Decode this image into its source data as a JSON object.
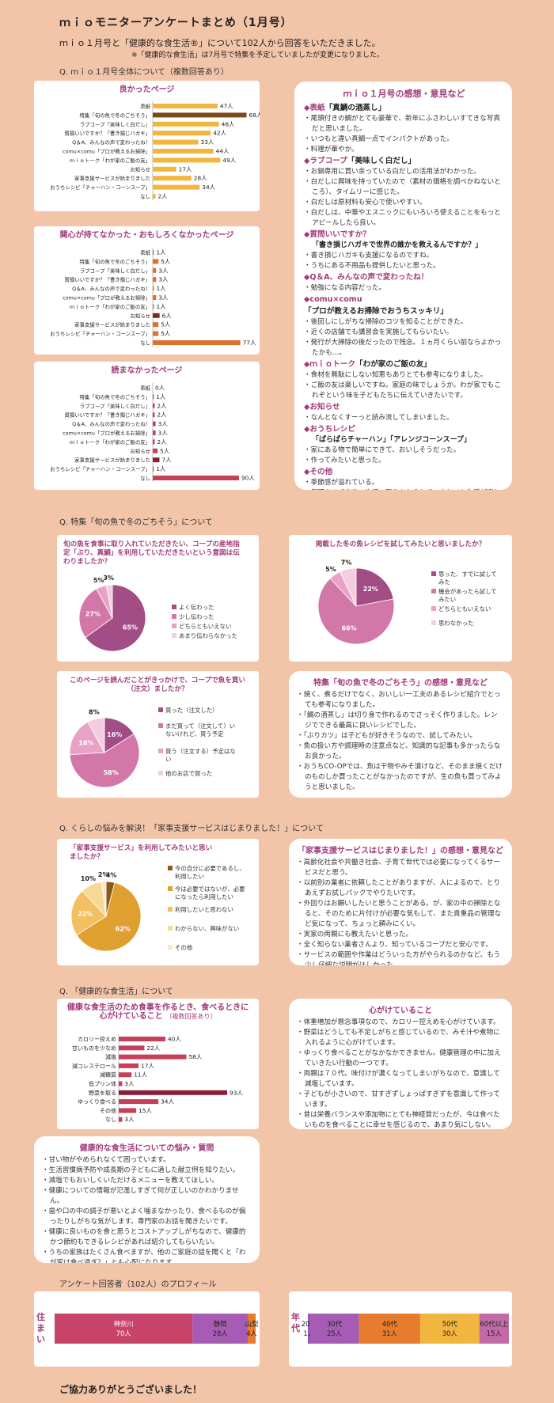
{
  "header": {
    "title": "ｍｉｏモニターアンケートまとめ（1月号）",
    "intro": "ｍｉｏ１月号と「健康的な食生活®」について102人から回答をいただきました。",
    "note": "※「健康的な食生活」は7月号で特集を予定していましたが変更になりました。"
  },
  "sections": {
    "q1": "Q. ｍｉｏ１月号全体について（複数回答あり）",
    "q2": "Q. 特集「旬の魚で冬のごちそう」について",
    "q3": "Q. くらしの悩みを解決！「家事支援サービスはじまりました！」について",
    "q4": "Q. 「健康的な食生活」について",
    "profile": "アンケート回答者（102人）のプロフィール"
  },
  "footer": {
    "thanks": "ご協力ありがとうございました！"
  },
  "colors": {
    "accent": "#a23a7a",
    "bar_good": "#f2b53d",
    "bar_dark": "#7a4a1a",
    "bar_red": "#c7405a",
    "bar_orange": "#e07030"
  },
  "chart_data": [
    {
      "type": "bar",
      "title": "良かったページ",
      "categories": [
        "表紙",
        "特集「旬の魚で冬のごちそう」",
        "ラブコープ「美味しく白だし」",
        "賀損いいですか？「書き損じハガキ」",
        "Q＆A、みんなの声で変わったね！",
        "comu×comu「プロが教えるお掃除」",
        "ｍｉｏトーク「わが家のご飯の友」",
        "お知らせ",
        "家事支援サービスが始まりました",
        "おうちレシピ「チャーハン・コーンスープ」",
        "なし"
      ],
      "values": [
        47,
        68,
        48,
        42,
        33,
        44,
        49,
        17,
        28,
        34,
        2
      ],
      "labels": [
        "47人",
        "68人",
        "48人",
        "42人",
        "33人",
        "44人",
        "49人",
        "17人",
        "28人",
        "34人",
        "2人"
      ],
      "xlim": [
        0,
        70
      ]
    },
    {
      "type": "bar",
      "title": "関心が持てなかった・おもしろくなかったページ",
      "categories": [
        "表紙",
        "特集「旬の魚で冬のごちそう」",
        "ラブコープ「美味しく白だし」",
        "賀損いいですか？「書き損じハガキ」",
        "Q＆A、みんなの声で変わったね！",
        "comu×comu「プロが教えるお掃除」",
        "ｍｉｏトーク「わが家のご飯の友」",
        "お知らせ",
        "家事支援サービスが始まりました",
        "おうちレシピ「チャーハン・コーンスープ」",
        "なし"
      ],
      "values": [
        1,
        5,
        3,
        3,
        1,
        3,
        1,
        6,
        5,
        5,
        77
      ],
      "labels": [
        "1人",
        "5人",
        "3人",
        "3人",
        "1人",
        "3人",
        "1人",
        "6人",
        "5人",
        "5人",
        "77人"
      ],
      "xlim": [
        0,
        80
      ]
    },
    {
      "type": "bar",
      "title": "読まなかったページ",
      "categories": [
        "表紙",
        "特集「旬の魚で冬のごちそう」",
        "ラブコープ「美味しく白だし」",
        "賀損いいですか？「書き損じハガキ」",
        "Q＆A、みんなの声で変わったね！",
        "comu×comu「プロが教えるお掃除」",
        "ｍｉｏトーク「わが家のご飯の友」",
        "お知らせ",
        "家事支援サービスが始まりました",
        "おうちレシピ「チャーハン・コーンスープ」",
        "なし"
      ],
      "values": [
        0,
        1,
        2,
        2,
        3,
        3,
        2,
        5,
        7,
        1,
        90
      ],
      "labels": [
        "0人",
        "1人",
        "2人",
        "2人",
        "3人",
        "3人",
        "2人",
        "5人",
        "7人",
        "1人",
        "90人"
      ],
      "xlim": [
        0,
        95
      ]
    },
    {
      "type": "pie",
      "title": "旬の魚を食事に取り入れていただきたい、コープの産地指定「ぶり、真鯛」を利用していただきたいという意図は伝わりましたか？",
      "categories": [
        "よく伝わった",
        "少し伝わった",
        "どちらともいえない",
        "あまり伝わらなかった"
      ],
      "values": [
        65,
        27,
        5,
        3
      ],
      "labels": [
        "65%",
        "27%",
        "5%",
        "3%"
      ]
    },
    {
      "type": "pie",
      "title": "掲載した冬の魚レシピを試してみたいと思いましたか？",
      "categories": [
        "思った、すでに試してみた",
        "機会があったら試してみたい",
        "どちらともいえない",
        "思わなかった"
      ],
      "values": [
        22,
        66,
        5,
        7
      ],
      "labels": [
        "22%",
        "66%",
        "5%",
        "7%"
      ]
    },
    {
      "type": "pie",
      "title": "このページを読んだことがきっかけで、コープで魚を買い（注文）ましたか？",
      "categories": [
        "買った（注文した）",
        "まだ買って（注文して）いないけれど、買う予定",
        "買う（注文する）予定はない",
        "他のお店で買った"
      ],
      "values": [
        16,
        58,
        18,
        8
      ],
      "labels": [
        "16%",
        "58%",
        "18%",
        "8%"
      ]
    },
    {
      "type": "pie",
      "title": "「家事支援サービス」を利用してみたいと思いましたか？",
      "categories": [
        "今の自分に必要であるし、利用したい",
        "今は必要ではないが、必要になったら利用したい",
        "利用したいと思わない",
        "わからない、興味がない",
        "その他"
      ],
      "values": [
        4,
        62,
        22,
        10,
        2
      ],
      "labels": [
        "4%",
        "62%",
        "22%",
        "10%",
        "2%"
      ]
    },
    {
      "type": "bar",
      "title": "健康な食生活のため食事を作るとき、食べるときに心がけていること",
      "subtitle": "（複数回答あり）",
      "categories": [
        "カロリー控えめ",
        "甘いものを少なめ",
        "減塩",
        "減コレステロール",
        "減糖質",
        "低プリン体",
        "野菜を取る",
        "ゆっくり食べる",
        "その他",
        "なし"
      ],
      "values": [
        40,
        22,
        58,
        17,
        11,
        3,
        93,
        34,
        15,
        3
      ],
      "labels": [
        "40人",
        "22人",
        "58人",
        "17人",
        "11人",
        "3人",
        "93人",
        "34人",
        "15人",
        "3人"
      ],
      "xlim": [
        0,
        95
      ]
    },
    {
      "type": "bar",
      "title": "住まい",
      "categories": [
        "神奈川",
        "静岡",
        "山梨"
      ],
      "values": [
        70,
        28,
        4
      ],
      "labels": [
        "70人",
        "28人",
        "4人"
      ]
    },
    {
      "type": "bar",
      "title": "年代",
      "categories": [
        "20代",
        "30代",
        "40代",
        "50代",
        "60代以上"
      ],
      "values": [
        1,
        25,
        31,
        30,
        15
      ],
      "labels": [
        "1人",
        "25人",
        "31人",
        "30人",
        "15人"
      ]
    }
  ],
  "comments": {
    "mio": {
      "title": "ｍｉｏ１月号の感想・意見など",
      "groups": [
        {
          "head": "◆表紙",
          "sub": "「真鯛の酒蒸し」",
          "items": [
            "尾頭付きの鯛がとても豪華で、新年にふさわしいすてきな写真だと思いました。",
            "いつもと違い真鯛一点でインパクトがあった。",
            "料理が華やか。"
          ]
        },
        {
          "head": "◆ラブコープ",
          "sub": "「美味しく白だし」",
          "items": [
            "お鍋専用に買い余っている白だしの活用法がわかった。",
            "白だしに興味を持っていたので（素材の価格を調べかねないところ）、タイムリーに感じた。",
            "白だしは原材料も安心で使いやすい。",
            "白だしは、中華やエスニックにもいろいろ使えることをもっとアピールしたら良い。"
          ]
        },
        {
          "head": "◆質問いいですか？",
          "sub": "",
          "items": []
        },
        {
          "head": "",
          "sub": "「書き損じハガキで世界の誰かを救えるんですか？」",
          "items": [
            "書き損じハガキも支援になるのですね。",
            "うちにある不用品も提供したいと思った。"
          ]
        },
        {
          "head": "◆Q＆A、みんなの声で変わったね！",
          "sub": "",
          "items": [
            "勉強になる内容だった。"
          ]
        },
        {
          "head": "◆comu×comu",
          "sub": "「プロが教えるお掃除でおうちスッキリ」",
          "items": [
            "後回しにしがちな掃除のコツを知ることができた。",
            "近くの店舗でも講習会を実施してもらいたい。",
            "発行が大掃除の後だったので残念。１ヵ月くらい前ならよかったかも…。"
          ]
        },
        {
          "head": "◆ｍｉｏトーク",
          "sub": "「わが家のご飯の友」",
          "items": [
            "食材を無駄にしない知恵もありとても参考になりました。",
            "ご飯の友は楽しいですね。家庭の味でしょうか。わが家でもこれぞという味を子どもたちに伝えていきたいです。"
          ]
        },
        {
          "head": "◆お知らせ",
          "sub": "",
          "items": [
            "なんとなくすーっと読み流してしまいました。"
          ]
        },
        {
          "head": "◆おうちレシピ",
          "sub": "",
          "items": []
        },
        {
          "head": "",
          "sub": "「ぱらぱらチャーハン」「アレンジコーンスープ」",
          "items": [
            "家にある物で簡単にできて、おいしそうだった。",
            "作ってみたいと思った。"
          ]
        },
        {
          "head": "◆その他",
          "sub": "",
          "items": [
            "季節感が溢れている。",
            "無理をせず自分の生活に取り入れられて、少しでも生活が楽しくなったり、豊かになったり…そんな情報がうれしいです。"
          ]
        }
      ]
    },
    "fish": {
      "title": "特集「旬の魚で冬のごちそう」の感想・意見など",
      "items": [
        "焼く、煮るだけでなく、おいしい一工夫のあるレシピ紹介でとっても参考になりました。",
        "「鯛の酒蒸し」は切り身で作れるのでさっそく作りました。レンジでできる最高に良いレシピでした。",
        "「ぶりカツ」は子どもが好きそうなので、試してみたい。",
        "魚の扱い方や調理時の注意点など、知識的な記事も多かったらなお良かった。",
        "おうちCO-OPでは、魚は干物やみそ漬けなど、そのまま焼くだけのものしか買ったことがなかったのですが、生の魚も買ってみようと思いました。"
      ]
    },
    "kaji": {
      "title": "「家事支援サービスはじまりました！」の感想・意見など",
      "items": [
        "高齢化社会や共働き社会、子育て世代では必要になってくるサービスだと思う。",
        "以前別の業者に依頼したことがありますが、人によるので、とりあえずお試しパックでやりたいです。",
        "外回りはお願いしたいと思うことがある。が、家の中の掃除となると、そのために片付けが必要な気もして、また貴重品の管理など気になって、ちょっと頼みにくい。",
        "実家の両親にも教えたいと思った。",
        "全く知らない業者さんより、知っているコープだと安心です。",
        "サービスの範囲や作業はどういった方がやられるのかなど、もう少し仔細な説明がほしかった。"
      ]
    },
    "care": {
      "title": "心がけていること",
      "items": [
        "体重増加が懸念事項なので、カロリー控えめを心がけています。",
        "野菜はどうしても不足しがちと感じているので、みそ汁や煮物に入れるように心がけています。",
        "ゆっくり食べることがなかなかできません。健康管理の中に加えていきたい行動の一つです。",
        "両親は７０代。味付けが濃くなってしまいがちなので、意識して減塩しています。",
        "子どもが小さいので、甘すぎずしょっぱすぎずを意識して作っています。",
        "昔は栄養バランスや添加物にとても神経質だったが、今は食べたいものを食べることに幸せを感じるので、あまり気にしない。"
      ]
    },
    "worry": {
      "title": "健康的な食生活についての悩み・質問",
      "items": [
        "甘い物がやめられなくて困っています。",
        "生活習慣病予防や成長期の子どもに適した献立例を知りたい。",
        "減塩でもおいしくいただけるメニューを教えてほしい。",
        "健康についての情報が氾濫しすぎて何が正しいのかわかりません。",
        "歯や口の中の調子が悪いとよく噛まなかったり、食べるものが偏ったりしがちな気がします。専門家のお話を聞きたいです。",
        "健康に良いものを食と思うとコストアップしがちなので、健康的かつ節約もできるレシピがあれば紹介してもらいたい。",
        "うちの家族はたくさん食べますが、他のご家庭の話を聞くと「わが家は食べ過ぎ？」とも心配になります。"
      ]
    }
  },
  "profile": {
    "residence_label": "住まい",
    "age_label": "年代"
  }
}
